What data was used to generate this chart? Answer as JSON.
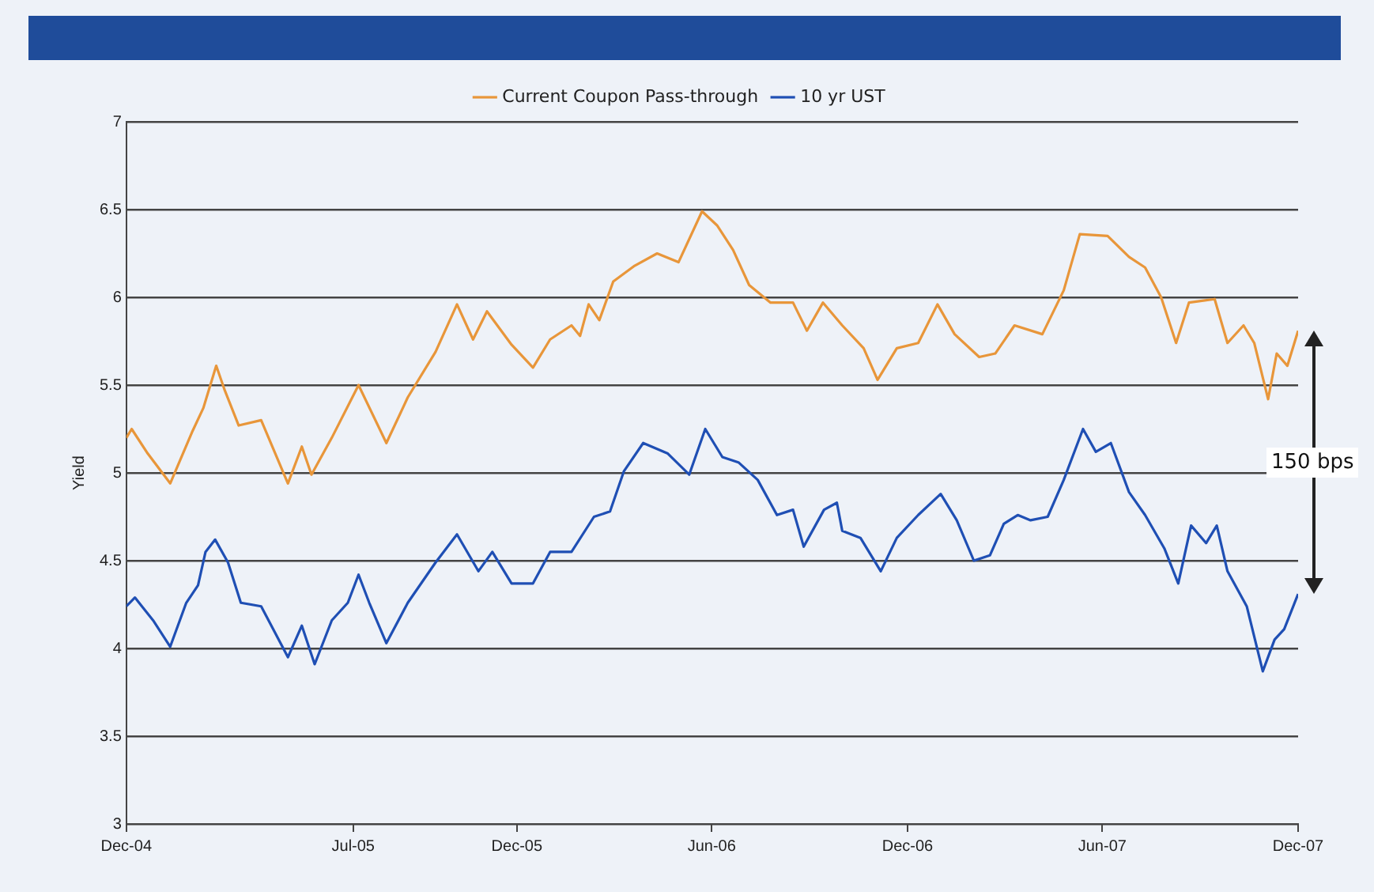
{
  "chart_data": {
    "type": "line",
    "ylabel": "Yield",
    "legend": "top",
    "grid": "y",
    "marker": "none",
    "line_style": "solid",
    "xlim": [
      "2004-12-01",
      "2007-12-01"
    ],
    "xticks": [
      {
        "value": "2004-12-01",
        "label": "Dec-04"
      },
      {
        "value": "2005-07-01",
        "label": "Jul-05"
      },
      {
        "value": "2005-12-01",
        "label": "Dec-05"
      },
      {
        "value": "2006-06-01",
        "label": "Jun-06"
      },
      {
        "value": "2006-12-01",
        "label": "Dec-06"
      },
      {
        "value": "2007-06-01",
        "label": "Jun-07"
      },
      {
        "value": "2007-12-01",
        "label": "Dec-07"
      }
    ],
    "ylim": [
      3,
      7
    ],
    "yticks": [
      3,
      3.5,
      4,
      4.5,
      5,
      5.5,
      6,
      6.5,
      7
    ],
    "annotations": [
      "150 bps"
    ],
    "series": [
      {
        "name": "Current Coupon Pass-through",
        "color": "#e8963a",
        "x": [
          "2004-12-01",
          "2004-12-06",
          "2004-12-21",
          "2005-01-11",
          "2005-02-01",
          "2005-02-11",
          "2005-02-23",
          "2005-03-03",
          "2005-03-16",
          "2005-04-06",
          "2005-05-01",
          "2005-05-14",
          "2005-05-23",
          "2005-06-11",
          "2005-07-06",
          "2005-08-01",
          "2005-08-21",
          "2005-09-16",
          "2005-10-06",
          "2005-10-21",
          "2005-11-03",
          "2005-11-26",
          "2005-12-16",
          "2006-01-01",
          "2006-01-21",
          "2006-01-29",
          "2006-02-06",
          "2006-02-16",
          "2006-03-01",
          "2006-03-21",
          "2006-04-11",
          "2006-05-01",
          "2006-05-23",
          "2006-06-06",
          "2006-06-21",
          "2006-07-06",
          "2006-07-26",
          "2006-08-16",
          "2006-08-29",
          "2006-09-13",
          "2006-10-01",
          "2006-10-21",
          "2006-11-03",
          "2006-11-21",
          "2006-12-11",
          "2006-12-29",
          "2007-01-14",
          "2007-02-06",
          "2007-02-21",
          "2007-03-11",
          "2007-04-06",
          "2007-04-26",
          "2007-05-11",
          "2007-06-06",
          "2007-06-26",
          "2007-07-11",
          "2007-07-26",
          "2007-08-09",
          "2007-08-21",
          "2007-09-14",
          "2007-09-26",
          "2007-10-11",
          "2007-10-21",
          "2007-11-03",
          "2007-11-11",
          "2007-11-21",
          "2007-12-01"
        ],
        "values": [
          5.2,
          5.25,
          5.11,
          4.94,
          5.24,
          5.37,
          5.61,
          5.47,
          5.27,
          5.3,
          4.94,
          5.15,
          4.99,
          5.2,
          5.5,
          5.17,
          5.43,
          5.69,
          5.96,
          5.76,
          5.92,
          5.73,
          5.6,
          5.76,
          5.84,
          5.78,
          5.96,
          5.87,
          6.09,
          6.18,
          6.25,
          6.2,
          6.49,
          6.41,
          6.27,
          6.07,
          5.97,
          5.97,
          5.81,
          5.97,
          5.84,
          5.71,
          5.53,
          5.71,
          5.74,
          5.96,
          5.79,
          5.66,
          5.68,
          5.84,
          5.79,
          6.04,
          6.36,
          6.35,
          6.23,
          6.17,
          6.0,
          5.74,
          5.97,
          5.99,
          5.74,
          5.84,
          5.74,
          5.42,
          5.68,
          5.61,
          5.81
        ]
      },
      {
        "name": "10 yr UST",
        "color": "#1f4fb4",
        "x": [
          "2004-12-01",
          "2004-12-09",
          "2004-12-26",
          "2005-01-11",
          "2005-01-26",
          "2005-02-06",
          "2005-02-13",
          "2005-02-22",
          "2005-03-06",
          "2005-03-18",
          "2005-04-06",
          "2005-05-01",
          "2005-05-14",
          "2005-05-26",
          "2005-06-11",
          "2005-06-26",
          "2005-07-06",
          "2005-07-16",
          "2005-08-01",
          "2005-08-21",
          "2005-09-16",
          "2005-10-06",
          "2005-10-26",
          "2005-11-08",
          "2005-11-26",
          "2005-12-16",
          "2006-01-01",
          "2006-01-21",
          "2006-02-11",
          "2006-02-26",
          "2006-03-11",
          "2006-03-29",
          "2006-04-21",
          "2006-05-11",
          "2006-05-26",
          "2006-06-11",
          "2006-06-26",
          "2006-07-14",
          "2006-08-01",
          "2006-08-16",
          "2006-08-26",
          "2006-09-14",
          "2006-09-26",
          "2006-10-01",
          "2006-10-18",
          "2006-11-06",
          "2006-11-21",
          "2006-12-11",
          "2007-01-01",
          "2007-01-16",
          "2007-02-01",
          "2007-02-16",
          "2007-03-01",
          "2007-03-14",
          "2007-03-26",
          "2007-04-11",
          "2007-04-26",
          "2007-05-14",
          "2007-05-26",
          "2007-06-09",
          "2007-06-26",
          "2007-07-11",
          "2007-07-29",
          "2007-08-11",
          "2007-08-23",
          "2007-09-06",
          "2007-09-16",
          "2007-09-26",
          "2007-10-14",
          "2007-10-29",
          "2007-11-09",
          "2007-11-18",
          "2007-12-01"
        ],
        "values": [
          4.24,
          4.29,
          4.16,
          4.01,
          4.26,
          4.36,
          4.55,
          4.62,
          4.49,
          4.26,
          4.24,
          3.95,
          4.13,
          3.91,
          4.16,
          4.26,
          4.42,
          4.26,
          4.03,
          4.26,
          4.49,
          4.65,
          4.44,
          4.55,
          4.37,
          4.37,
          4.55,
          4.55,
          4.75,
          4.78,
          5.01,
          5.17,
          5.11,
          4.99,
          5.25,
          5.09,
          5.06,
          4.96,
          4.76,
          4.79,
          4.58,
          4.79,
          4.83,
          4.67,
          4.63,
          4.44,
          4.63,
          4.76,
          4.88,
          4.73,
          4.5,
          4.53,
          4.71,
          4.76,
          4.73,
          4.75,
          4.96,
          5.25,
          5.12,
          5.17,
          4.89,
          4.76,
          4.57,
          4.37,
          4.7,
          4.6,
          4.7,
          4.44,
          4.24,
          3.87,
          4.05,
          4.11,
          4.31
        ]
      }
    ]
  }
}
